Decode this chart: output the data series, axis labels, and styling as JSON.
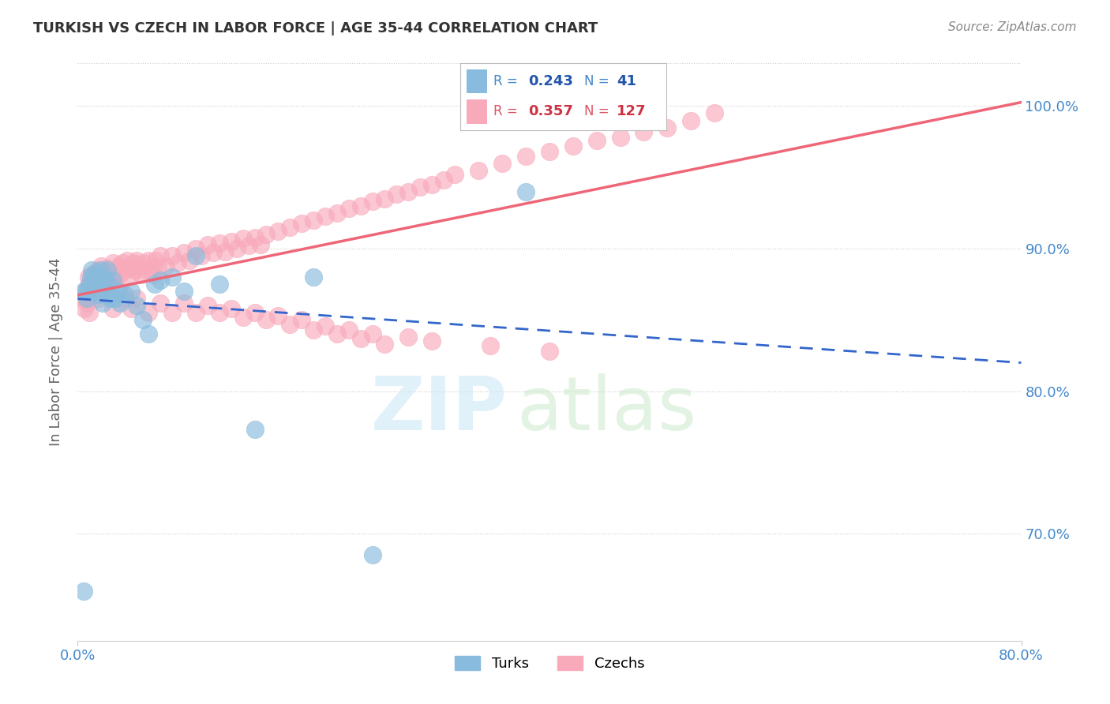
{
  "title": "TURKISH VS CZECH IN LABOR FORCE | AGE 35-44 CORRELATION CHART",
  "source": "Source: ZipAtlas.com",
  "ylabel": "In Labor Force | Age 35-44",
  "xlim": [
    0.0,
    0.8
  ],
  "ylim": [
    0.625,
    1.03
  ],
  "ytick_vals": [
    0.7,
    0.8,
    0.9,
    1.0
  ],
  "ytick_labels": [
    "70.0%",
    "80.0%",
    "90.0%",
    "100.0%"
  ],
  "turks_R": 0.243,
  "turks_N": 41,
  "czechs_R": 0.357,
  "czechs_N": 127,
  "turk_color": "#88bbdd",
  "czech_color": "#f8aabb",
  "turk_line_color": "#3366cc",
  "czech_line_color": "#ee6677",
  "background_color": "#ffffff",
  "turks_x": [
    0.005,
    0.005,
    0.007,
    0.008,
    0.01,
    0.01,
    0.011,
    0.012,
    0.013,
    0.014,
    0.015,
    0.016,
    0.017,
    0.018,
    0.02,
    0.021,
    0.022,
    0.023,
    0.025,
    0.026,
    0.027,
    0.028,
    0.03,
    0.032,
    0.034,
    0.036,
    0.04,
    0.045,
    0.05,
    0.055,
    0.06,
    0.065,
    0.07,
    0.08,
    0.09,
    0.1,
    0.12,
    0.15,
    0.2,
    0.25,
    0.38
  ],
  "turks_y": [
    0.66,
    0.87,
    0.87,
    0.865,
    0.875,
    0.87,
    0.88,
    0.885,
    0.878,
    0.872,
    0.883,
    0.876,
    0.868,
    0.88,
    0.885,
    0.862,
    0.87,
    0.878,
    0.885,
    0.875,
    0.867,
    0.865,
    0.878,
    0.865,
    0.87,
    0.862,
    0.868,
    0.87,
    0.86,
    0.85,
    0.84,
    0.875,
    0.878,
    0.88,
    0.87,
    0.895,
    0.875,
    0.773,
    0.88,
    0.685,
    0.94
  ],
  "czechs_x": [
    0.005,
    0.006,
    0.008,
    0.009,
    0.01,
    0.011,
    0.012,
    0.013,
    0.014,
    0.015,
    0.016,
    0.017,
    0.018,
    0.019,
    0.02,
    0.021,
    0.022,
    0.023,
    0.025,
    0.026,
    0.027,
    0.028,
    0.03,
    0.032,
    0.033,
    0.035,
    0.036,
    0.038,
    0.04,
    0.042,
    0.044,
    0.045,
    0.047,
    0.048,
    0.05,
    0.052,
    0.054,
    0.056,
    0.058,
    0.06,
    0.062,
    0.064,
    0.066,
    0.068,
    0.07,
    0.075,
    0.08,
    0.085,
    0.09,
    0.095,
    0.1,
    0.105,
    0.11,
    0.115,
    0.12,
    0.125,
    0.13,
    0.135,
    0.14,
    0.145,
    0.15,
    0.155,
    0.16,
    0.17,
    0.18,
    0.19,
    0.2,
    0.21,
    0.22,
    0.23,
    0.24,
    0.25,
    0.26,
    0.27,
    0.28,
    0.29,
    0.3,
    0.31,
    0.32,
    0.34,
    0.36,
    0.38,
    0.4,
    0.42,
    0.44,
    0.46,
    0.48,
    0.5,
    0.52,
    0.54,
    0.008,
    0.01,
    0.012,
    0.015,
    0.018,
    0.02,
    0.025,
    0.03,
    0.035,
    0.04,
    0.045,
    0.05,
    0.06,
    0.07,
    0.08,
    0.09,
    0.1,
    0.11,
    0.12,
    0.13,
    0.14,
    0.15,
    0.16,
    0.17,
    0.18,
    0.19,
    0.2,
    0.21,
    0.22,
    0.23,
    0.24,
    0.25,
    0.26,
    0.28,
    0.3,
    0.35,
    0.4
  ],
  "czechs_y": [
    0.865,
    0.858,
    0.872,
    0.88,
    0.875,
    0.868,
    0.882,
    0.876,
    0.87,
    0.883,
    0.878,
    0.885,
    0.873,
    0.88,
    0.888,
    0.875,
    0.882,
    0.878,
    0.886,
    0.88,
    0.875,
    0.883,
    0.89,
    0.878,
    0.883,
    0.888,
    0.882,
    0.89,
    0.885,
    0.892,
    0.887,
    0.882,
    0.89,
    0.885,
    0.892,
    0.888,
    0.882,
    0.89,
    0.885,
    0.892,
    0.887,
    0.882,
    0.892,
    0.887,
    0.895,
    0.888,
    0.895,
    0.89,
    0.897,
    0.892,
    0.9,
    0.895,
    0.903,
    0.897,
    0.904,
    0.898,
    0.905,
    0.9,
    0.907,
    0.902,
    0.908,
    0.903,
    0.91,
    0.912,
    0.915,
    0.918,
    0.92,
    0.923,
    0.925,
    0.928,
    0.93,
    0.933,
    0.935,
    0.938,
    0.94,
    0.943,
    0.945,
    0.948,
    0.952,
    0.955,
    0.96,
    0.965,
    0.968,
    0.972,
    0.976,
    0.978,
    0.982,
    0.985,
    0.99,
    0.995,
    0.862,
    0.855,
    0.87,
    0.878,
    0.865,
    0.875,
    0.868,
    0.858,
    0.872,
    0.865,
    0.858,
    0.865,
    0.855,
    0.862,
    0.855,
    0.862,
    0.855,
    0.86,
    0.855,
    0.858,
    0.852,
    0.855,
    0.85,
    0.853,
    0.847,
    0.85,
    0.843,
    0.846,
    0.84,
    0.843,
    0.837,
    0.84,
    0.833,
    0.838,
    0.835,
    0.832,
    0.828
  ]
}
